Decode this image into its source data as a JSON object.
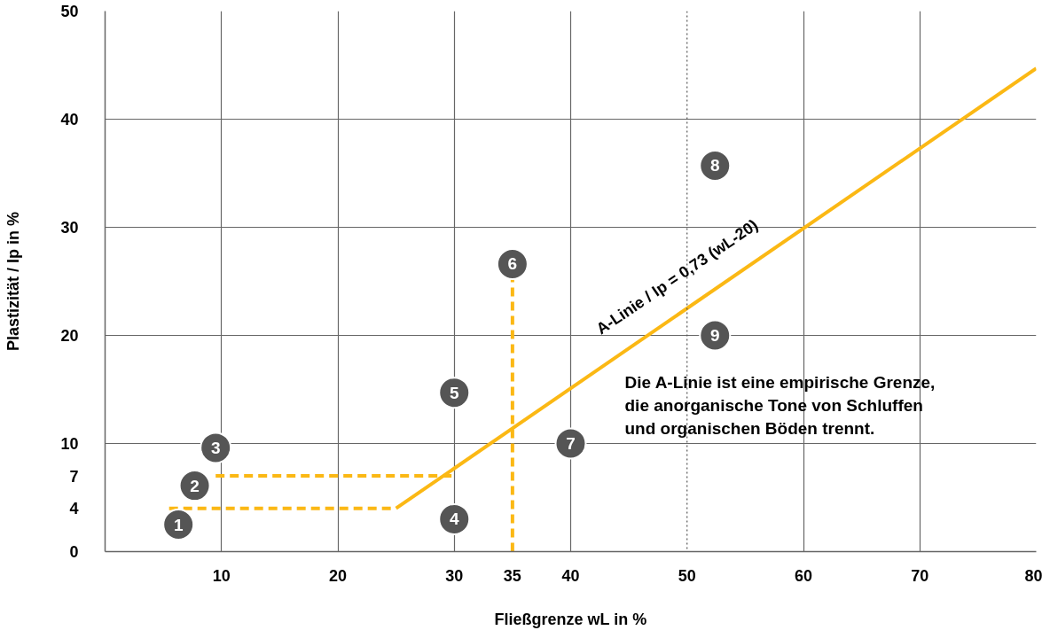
{
  "chart_data": {
    "type": "line",
    "xlabel": "Fließgrenze wL in %",
    "ylabel": "Plastizität / Ip in %",
    "xlim": [
      0,
      80
    ],
    "ylim": [
      0,
      50
    ],
    "xticks": [
      10,
      20,
      30,
      {
        "value": 35,
        "label": "35"
      },
      40,
      {
        "value": 50,
        "label": "50"
      },
      60,
      70,
      80
    ],
    "yticks": [
      0,
      {
        "value": 4,
        "label": "4"
      },
      {
        "value": 7,
        "label": "7"
      },
      10,
      20,
      30,
      40,
      50
    ],
    "grid": true,
    "series": [
      {
        "color": "#fbb814",
        "x": [
          25,
          80
        ],
        "values": [
          4,
          44.7
        ],
        "line_style": "solid"
      },
      {
        "color": "#fbb814",
        "x": [
          5.5,
          25
        ],
        "values": [
          4,
          4
        ],
        "line_style": "dashed"
      },
      {
        "color": "#fbb814",
        "x": [
          9.5,
          30
        ],
        "values": [
          7,
          7
        ],
        "line_style": "dashed"
      },
      {
        "color": "#fbb814",
        "x": [
          35,
          35
        ],
        "values": [
          0,
          25.3
        ],
        "line_style": "dashed"
      },
      {
        "type": "scatter",
        "name": "1",
        "color": "#555555",
        "marker": "circle",
        "x": [
          6.3
        ],
        "values": [
          2.5
        ]
      },
      {
        "type": "scatter",
        "name": "2",
        "color": "#555555",
        "marker": "circle",
        "x": [
          7.7
        ],
        "values": [
          6.1
        ]
      },
      {
        "type": "scatter",
        "name": "3",
        "color": "#555555",
        "marker": "circle",
        "x": [
          9.5
        ],
        "values": [
          9.6
        ]
      },
      {
        "type": "scatter",
        "name": "4",
        "color": "#555555",
        "marker": "circle",
        "x": [
          30
        ],
        "values": [
          3
        ]
      },
      {
        "type": "scatter",
        "name": "5",
        "color": "#555555",
        "marker": "circle",
        "x": [
          30
        ],
        "values": [
          14.7
        ]
      },
      {
        "type": "scatter",
        "name": "6",
        "color": "#555555",
        "marker": "circle",
        "x": [
          35
        ],
        "values": [
          26.6
        ]
      },
      {
        "type": "scatter",
        "name": "7",
        "color": "#555555",
        "marker": "circle",
        "x": [
          40
        ],
        "values": [
          10
        ]
      },
      {
        "type": "scatter",
        "name": "8",
        "color": "#555555",
        "marker": "circle",
        "x": [
          52.4
        ],
        "values": [
          35.7
        ]
      },
      {
        "type": "scatter",
        "name": "9",
        "color": "#555555",
        "marker": "circle",
        "x": [
          52.4
        ],
        "values": [
          20
        ]
      }
    ],
    "ref_lines": [
      {
        "axis": "x",
        "value": 50,
        "color": "#555555",
        "line_style": "dotted"
      }
    ],
    "annotations": [
      "A-Linie / Ip = 0,73 (wL-20)",
      "Die A-Linie ist eine empirische Grenze,\ndie anorganische Tone von Schluffen\nund organischen Böden trennt."
    ]
  }
}
